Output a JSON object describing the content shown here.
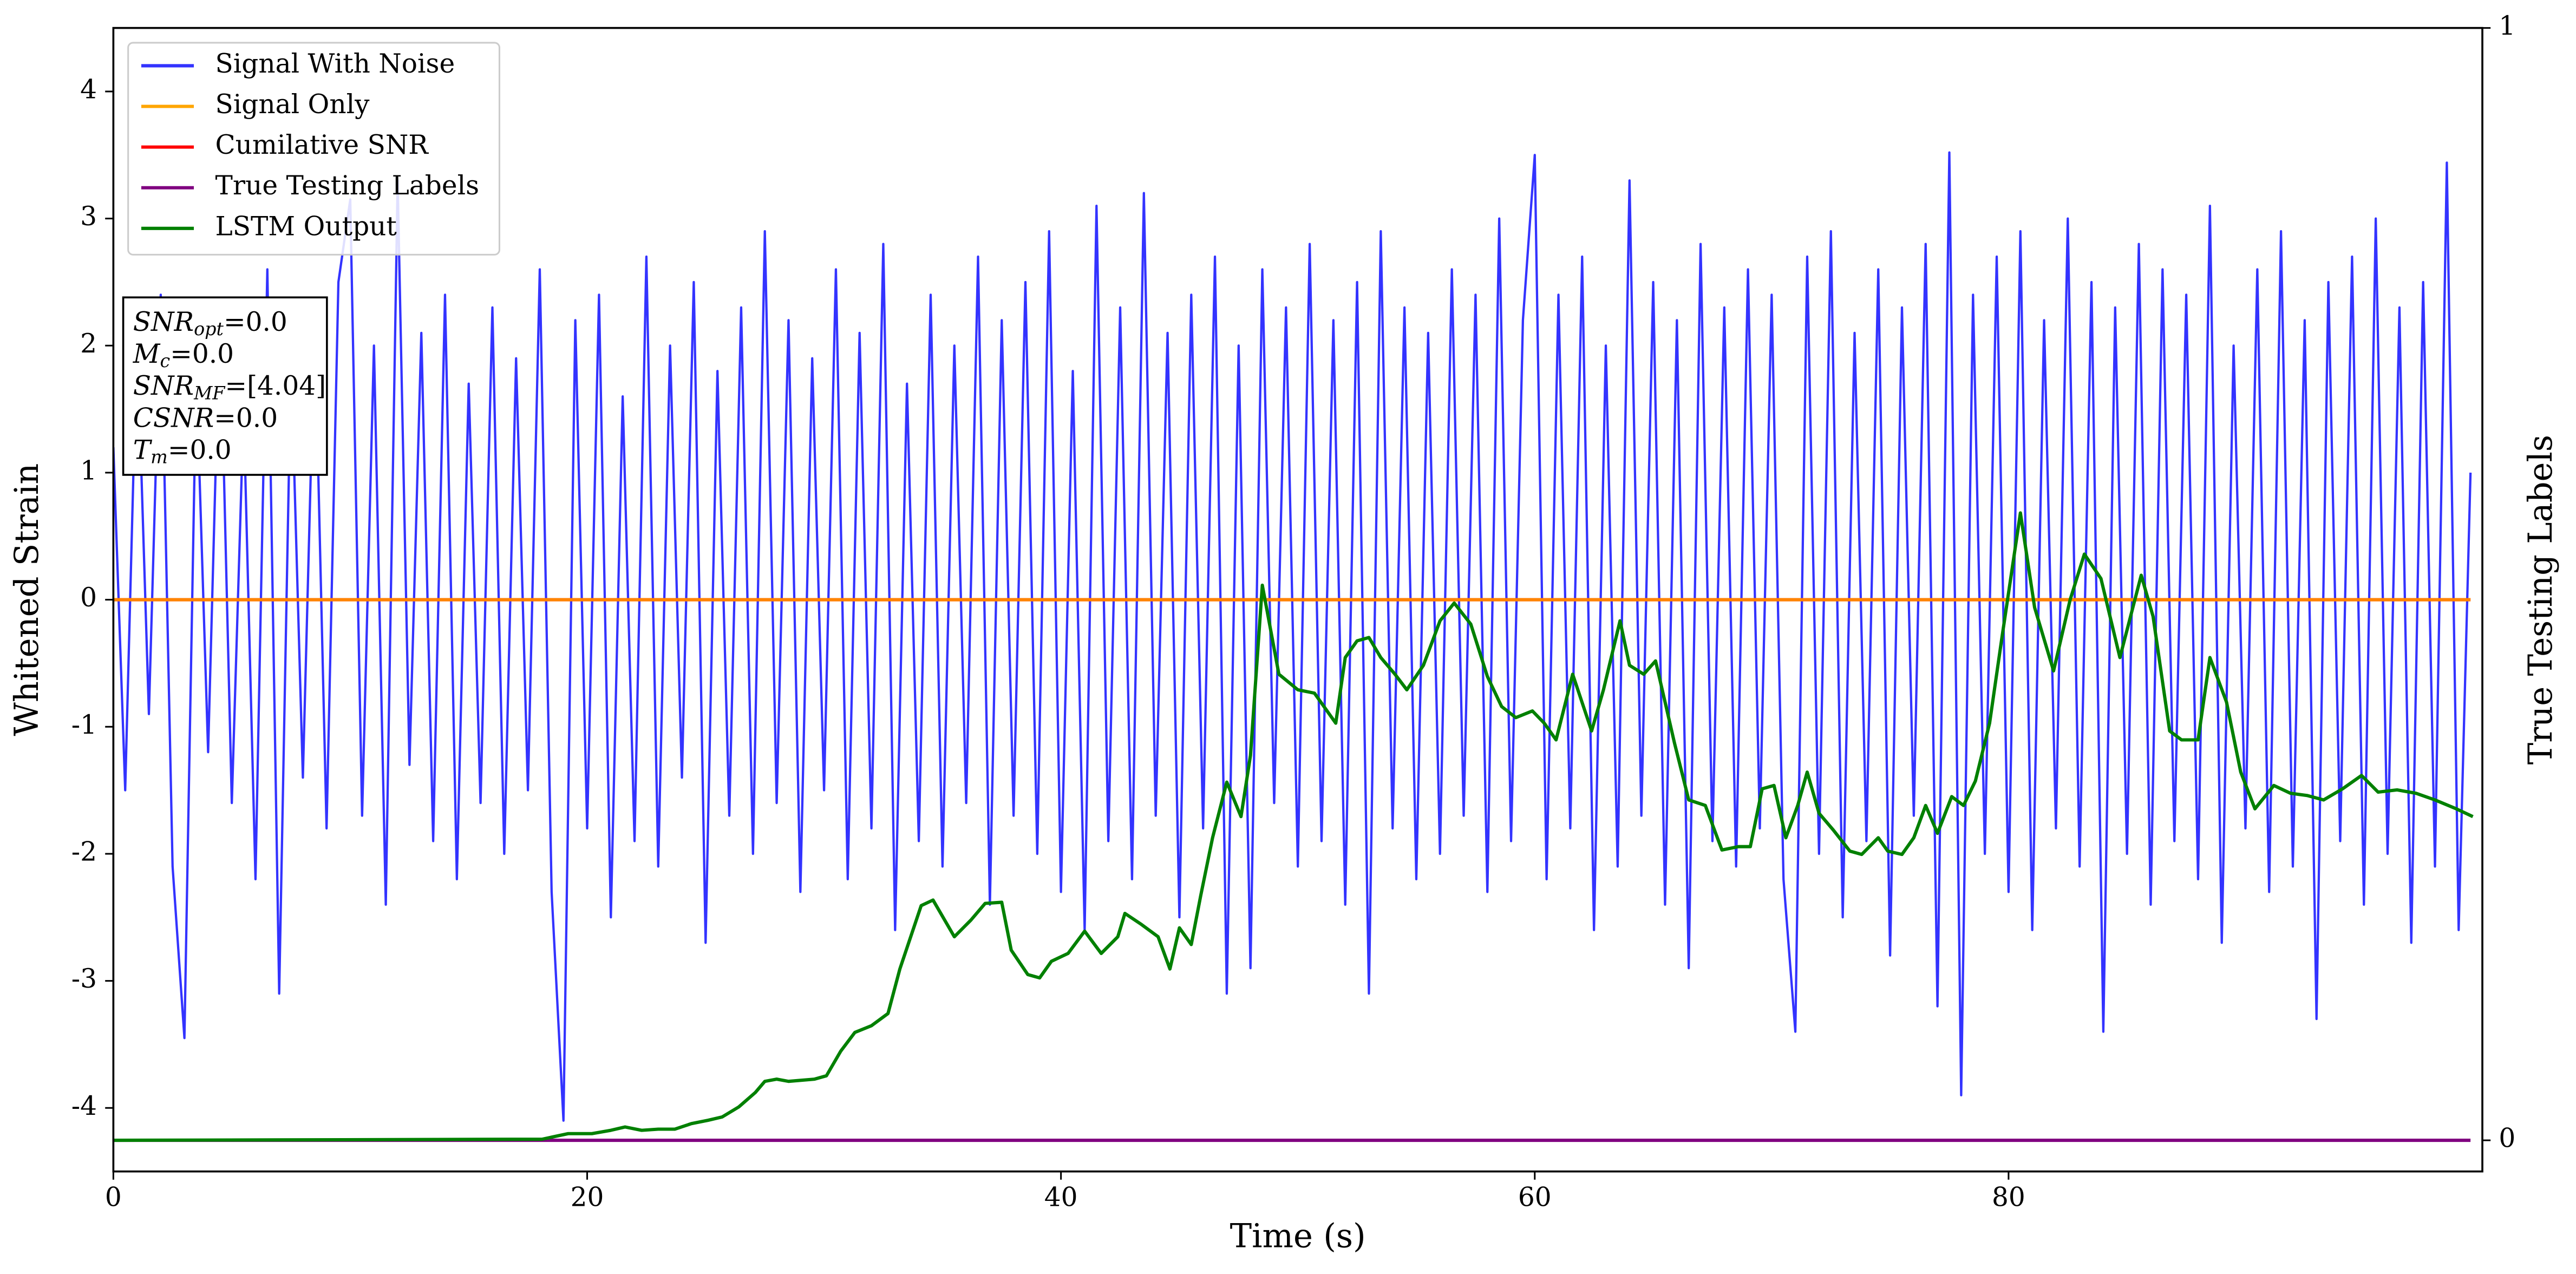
{
  "chart_data": {
    "type": "line",
    "xlabel": "Time (s)",
    "ylabel": "Whitened Strain",
    "y2label": "True Testing Labels",
    "xlim": [
      0,
      100
    ],
    "ylim": [
      -4.5,
      4.5
    ],
    "y2lim": [
      -0.028,
      1
    ],
    "xticks": [
      0,
      20,
      40,
      60,
      80
    ],
    "yticks": [
      -4,
      -3,
      -2,
      -1,
      0,
      1,
      2,
      3,
      4
    ],
    "y2ticks": [
      0,
      1
    ],
    "legend": "upper left",
    "annotation": [
      {
        "symbol": "SNR",
        "sub": "opt",
        "text": "=0.0"
      },
      {
        "symbol": "M",
        "sub": "c",
        "text": "=0.0"
      },
      {
        "symbol": "SNR",
        "sub": "MF",
        "text": "=[4.04]"
      },
      {
        "symbol": "CSNR",
        "text": "=0.0"
      },
      {
        "symbol": "T",
        "sub": "m",
        "text": "=0.0"
      }
    ],
    "series": [
      {
        "name": "Signal With Noise",
        "color": "#3333ff",
        "x": [
          0,
          0.5,
          1,
          1.5,
          2,
          2.5,
          3,
          3.5,
          4,
          4.5,
          5,
          5.5,
          6,
          6.5,
          7,
          7.5,
          8,
          8.5,
          9,
          9.5,
          10,
          10.5,
          11,
          11.5,
          12,
          12.5,
          13,
          13.5,
          14,
          14.5,
          15,
          15.5,
          16,
          16.5,
          17,
          17.5,
          18,
          18.5,
          19,
          19.5,
          20,
          20.5,
          21,
          21.5,
          22,
          22.5,
          23,
          23.5,
          24,
          24.5,
          25,
          25.5,
          26,
          26.5,
          27,
          27.5,
          28,
          28.5,
          29,
          29.5,
          30,
          30.5,
          31,
          31.5,
          32,
          32.5,
          33,
          33.5,
          34,
          34.5,
          35,
          35.5,
          36,
          36.5,
          37,
          37.5,
          38,
          38.5,
          39,
          39.5,
          40,
          40.5,
          41,
          41.5,
          42,
          42.5,
          43,
          43.5,
          44,
          44.5,
          45,
          45.5,
          46,
          46.5,
          47,
          47.5,
          48,
          48.5,
          49,
          49.5,
          50,
          50.5,
          51,
          51.5,
          52,
          52.5,
          53,
          53.5,
          54,
          54.5,
          55,
          55.5,
          56,
          56.5,
          57,
          57.5,
          58,
          58.5,
          59,
          59.5,
          60,
          60.5,
          61,
          61.5,
          62,
          62.5,
          63,
          63.5,
          64,
          64.5,
          65,
          65.5,
          66,
          66.5,
          67,
          67.5,
          68,
          68.5,
          69,
          69.5,
          70,
          70.5,
          71,
          71.5,
          72,
          72.5,
          73,
          73.5,
          74,
          74.5,
          75,
          75.5,
          76,
          76.5,
          77,
          77.5,
          78,
          78.5,
          79,
          79.5,
          80,
          80.5,
          81,
          81.5,
          82,
          82.5,
          83,
          83.5,
          84,
          84.5,
          85,
          85.5,
          86,
          86.5,
          87,
          87.5,
          88,
          88.5,
          89,
          89.5,
          90,
          90.5,
          91,
          91.5,
          92,
          92.5,
          93,
          93.5,
          94,
          94.5,
          95,
          95.5,
          96,
          96.5,
          97,
          97.5,
          98,
          98.5,
          99,
          99.5
        ],
        "values": [
          1.2,
          -1.5,
          2.1,
          -0.9,
          2.4,
          -2.1,
          -3.45,
          1.8,
          -1.2,
          2.3,
          -1.6,
          1.5,
          -2.2,
          2.6,
          -3.1,
          1.9,
          -1.4,
          2.2,
          -1.8,
          2.5,
          3.15,
          -1.7,
          2.0,
          -2.4,
          3.3,
          -1.3,
          2.1,
          -1.9,
          2.4,
          -2.2,
          1.7,
          -1.6,
          2.3,
          -2.0,
          1.9,
          -1.5,
          2.6,
          -2.3,
          -4.1,
          2.2,
          -1.8,
          2.4,
          -2.5,
          1.6,
          -1.9,
          2.7,
          -2.1,
          2.0,
          -1.4,
          2.5,
          -2.7,
          1.8,
          -1.7,
          2.3,
          -2.0,
          2.9,
          -1.6,
          2.2,
          -2.3,
          1.9,
          -1.5,
          2.6,
          -2.2,
          2.1,
          -1.8,
          2.8,
          -2.6,
          1.7,
          -1.9,
          2.4,
          -2.1,
          2.0,
          -1.6,
          2.7,
          -2.4,
          2.2,
          -1.7,
          2.5,
          -2.0,
          2.9,
          -2.3,
          1.8,
          -2.6,
          3.1,
          -1.9,
          2.3,
          -2.2,
          3.2,
          -1.7,
          2.1,
          -2.5,
          2.4,
          -1.8,
          2.7,
          -3.1,
          2.0,
          -2.9,
          2.6,
          -1.6,
          2.3,
          -2.1,
          2.8,
          -1.9,
          2.2,
          -2.4,
          2.5,
          -3.1,
          2.9,
          -1.8,
          2.3,
          -2.2,
          2.1,
          -2.0,
          2.6,
          -1.7,
          2.4,
          -2.3,
          3.0,
          -1.9,
          2.2,
          3.5,
          -2.2,
          2.4,
          -1.8,
          2.7,
          -2.6,
          2.0,
          -2.1,
          3.3,
          -1.7,
          2.5,
          -2.4,
          2.2,
          -2.9,
          2.8,
          -1.9,
          2.3,
          -2.1,
          2.6,
          -1.8,
          2.4,
          -2.2,
          -3.4,
          2.7,
          -2.0,
          2.9,
          -2.5,
          2.1,
          -1.9,
          2.6,
          -2.8,
          2.3,
          -1.7,
          2.8,
          -3.2,
          3.52,
          -3.9,
          2.4,
          -2.0,
          2.7,
          -2.3,
          2.9,
          -2.6,
          2.2,
          -1.8,
          3.0,
          -2.1,
          2.5,
          -3.4,
          2.3,
          -2.0,
          2.8,
          -2.4,
          2.6,
          -1.9,
          2.4,
          -2.2,
          3.1,
          -2.7,
          2.0,
          -1.8,
          2.6,
          -2.3,
          2.9,
          -2.1,
          2.2,
          -3.3,
          2.5,
          -1.9,
          2.7,
          -2.4,
          3.0,
          -2.0,
          2.3,
          -2.7,
          2.5,
          -2.1,
          3.44,
          -2.6,
          1.0
        ]
      },
      {
        "name": "Signal Only",
        "color": "#ffa500",
        "x": [
          0,
          99.5
        ],
        "values": [
          0,
          0
        ]
      },
      {
        "name": "Cumilative SNR",
        "color": "#ff0000",
        "x": [
          0,
          99.5
        ],
        "values": [
          0,
          0
        ]
      },
      {
        "name": "True Testing Labels",
        "color": "#800080",
        "axis": "y2",
        "x": [
          0,
          99.5
        ],
        "values": [
          0,
          0
        ]
      },
      {
        "name": "LSTM Output",
        "color": "#008000",
        "axis": "y2",
        "x": [
          0,
          18.1,
          19.2,
          20.2,
          21,
          21.6,
          22.3,
          23,
          23.7,
          24.4,
          25.1,
          25.7,
          26.4,
          27.1,
          27.5,
          28,
          28.5,
          29.6,
          30.1,
          30.7,
          31.3,
          32,
          32.7,
          33.2,
          34.1,
          34.6,
          35.5,
          36.2,
          36.8,
          37.5,
          37.9,
          38.6,
          39.1,
          39.6,
          40.3,
          41,
          41.7,
          42.4,
          42.7,
          43.4,
          44.1,
          44.6,
          45,
          45.5,
          45.9,
          46.4,
          47,
          47.6,
          48,
          48.5,
          49.2,
          50,
          50.7,
          51.6,
          52,
          52.5,
          53,
          53.5,
          54.1,
          54.6,
          55.3,
          56,
          56.6,
          57.3,
          58,
          58.6,
          59.2,
          59.9,
          60.4,
          60.9,
          61.6,
          62.4,
          62.9,
          63.6,
          64,
          64.6,
          65.1,
          65.9,
          66.5,
          67.2,
          67.9,
          68.6,
          69.1,
          69.6,
          70.1,
          70.6,
          71.1,
          71.5,
          72,
          72.6,
          73.3,
          73.8,
          74.5,
          74.9,
          75.5,
          76,
          76.5,
          77,
          77.6,
          78.1,
          78.6,
          79.2,
          79.7,
          80.5,
          81.1,
          81.9,
          82.6,
          83.2,
          83.9,
          84.7,
          85.6,
          86.1,
          86.8,
          87.3,
          88,
          88.5,
          89.2,
          89.8,
          90.4,
          91.2,
          91.9,
          92.6,
          93.3,
          94.1,
          94.9,
          95.6,
          96.4,
          97.2,
          98,
          98.9,
          99.6
        ],
        "values": [
          0,
          0.001,
          0.006,
          0.006,
          0.009,
          0.012,
          0.009,
          0.01,
          0.01,
          0.015,
          0.018,
          0.021,
          0.03,
          0.043,
          0.053,
          0.055,
          0.053,
          0.055,
          0.058,
          0.08,
          0.097,
          0.103,
          0.114,
          0.154,
          0.211,
          0.216,
          0.183,
          0.198,
          0.213,
          0.214,
          0.171,
          0.149,
          0.146,
          0.161,
          0.168,
          0.188,
          0.168,
          0.183,
          0.204,
          0.194,
          0.183,
          0.154,
          0.191,
          0.176,
          0.22,
          0.272,
          0.322,
          0.291,
          0.346,
          0.499,
          0.419,
          0.405,
          0.402,
          0.375,
          0.434,
          0.449,
          0.452,
          0.434,
          0.419,
          0.405,
          0.427,
          0.467,
          0.483,
          0.464,
          0.417,
          0.39,
          0.38,
          0.386,
          0.375,
          0.36,
          0.419,
          0.368,
          0.405,
          0.467,
          0.427,
          0.419,
          0.431,
          0.357,
          0.306,
          0.301,
          0.261,
          0.264,
          0.264,
          0.316,
          0.319,
          0.272,
          0.301,
          0.331,
          0.294,
          0.279,
          0.26,
          0.257,
          0.272,
          0.26,
          0.257,
          0.272,
          0.301,
          0.276,
          0.309,
          0.301,
          0.323,
          0.375,
          0.449,
          0.564,
          0.479,
          0.422,
          0.486,
          0.527,
          0.505,
          0.434,
          0.508,
          0.471,
          0.368,
          0.36,
          0.36,
          0.434,
          0.394,
          0.331,
          0.298,
          0.319,
          0.312,
          0.31,
          0.306,
          0.316,
          0.328,
          0.313,
          0.315,
          0.312,
          0.306,
          0.298,
          0.291
        ]
      }
    ]
  }
}
